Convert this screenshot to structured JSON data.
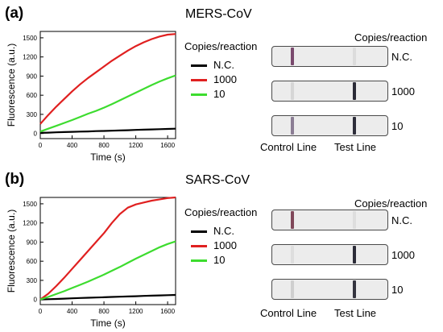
{
  "panels": [
    {
      "label": "(a)",
      "title": "MERS-CoV",
      "legend_title": "Copies/reaction",
      "legend": [
        {
          "name": "N.C.",
          "color": "#000000"
        },
        {
          "name": "1000",
          "color": "#e02020"
        },
        {
          "name": "10",
          "color": "#3ddc2f"
        }
      ],
      "strips_title": "Copies/reaction",
      "strips": [
        {
          "label": "N.C.",
          "control_color": "#7a4a6e",
          "test_color": "#dcdcdc"
        },
        {
          "label": "1000",
          "control_color": "#d6d6d6",
          "test_color": "#2a2a36"
        },
        {
          "label": "10",
          "control_color": "#8b7d94",
          "test_color": "#2e2e3a"
        }
      ],
      "control_line_label": "Control Line",
      "test_line_label": "Test Line"
    },
    {
      "label": "(b)",
      "title": "SARS-CoV",
      "legend_title": "Copies/reaction",
      "legend": [
        {
          "name": "N.C.",
          "color": "#000000"
        },
        {
          "name": "1000",
          "color": "#e02020"
        },
        {
          "name": "10",
          "color": "#3ddc2f"
        }
      ],
      "strips_title": "Copies/reaction",
      "strips": [
        {
          "label": "N.C.",
          "control_color": "#80485a",
          "test_color": "#dedede"
        },
        {
          "label": "1000",
          "control_color": "#dedede",
          "test_color": "#2c2c38"
        },
        {
          "label": "10",
          "control_color": "#cfcfcf",
          "test_color": "#34343f"
        }
      ],
      "control_line_label": "Control Line",
      "test_line_label": "Test Line"
    }
  ],
  "chart_data": [
    {
      "type": "line",
      "title": "",
      "xlabel": "Time (s)",
      "ylabel": "Fluorescence (a.u.)",
      "xlim": [
        0,
        1700
      ],
      "ylim": [
        -80,
        1600
      ],
      "xticks": [
        0,
        400,
        800,
        1200,
        1600
      ],
      "yticks": [
        0,
        300,
        600,
        900,
        1200,
        1500
      ],
      "grid": false,
      "legend_title": "Copies/reaction",
      "x": [
        0,
        100,
        200,
        300,
        400,
        500,
        600,
        700,
        800,
        900,
        1000,
        1100,
        1200,
        1300,
        1400,
        1500,
        1600,
        1700
      ],
      "series": [
        {
          "name": "N.C.",
          "color": "#000000",
          "values": [
            10,
            14,
            18,
            22,
            26,
            30,
            33,
            37,
            40,
            44,
            48,
            52,
            56,
            60,
            64,
            68,
            72,
            76
          ]
        },
        {
          "name": "1000",
          "color": "#e02020",
          "values": [
            150,
            290,
            420,
            540,
            660,
            770,
            870,
            960,
            1050,
            1140,
            1220,
            1300,
            1370,
            1430,
            1480,
            1520,
            1550,
            1560
          ]
        },
        {
          "name": "10",
          "color": "#3ddc2f",
          "values": [
            30,
            75,
            120,
            165,
            210,
            260,
            310,
            355,
            405,
            460,
            520,
            580,
            640,
            700,
            760,
            815,
            865,
            910
          ]
        }
      ]
    },
    {
      "type": "line",
      "title": "",
      "xlabel": "Time (s)",
      "ylabel": "Fluorescence (a.u.)",
      "xlim": [
        0,
        1700
      ],
      "ylim": [
        -80,
        1600
      ],
      "xticks": [
        0,
        400,
        800,
        1200,
        1600
      ],
      "yticks": [
        0,
        300,
        600,
        900,
        1200,
        1500
      ],
      "grid": false,
      "legend_title": "Copies/reaction",
      "x": [
        0,
        100,
        200,
        300,
        400,
        500,
        600,
        700,
        800,
        900,
        1000,
        1100,
        1200,
        1300,
        1400,
        1500,
        1600,
        1700
      ],
      "series": [
        {
          "name": "N.C.",
          "color": "#000000",
          "values": [
            0,
            5,
            9,
            14,
            18,
            23,
            27,
            31,
            35,
            40,
            44,
            48,
            52,
            56,
            60,
            64,
            68,
            72
          ]
        },
        {
          "name": "1000",
          "color": "#e02020",
          "values": [
            0,
            90,
            210,
            340,
            480,
            620,
            760,
            900,
            1040,
            1200,
            1340,
            1440,
            1490,
            1520,
            1550,
            1570,
            1590,
            1600
          ]
        },
        {
          "name": "10",
          "color": "#3ddc2f",
          "values": [
            0,
            40,
            85,
            130,
            180,
            230,
            280,
            335,
            390,
            450,
            510,
            575,
            640,
            700,
            760,
            820,
            870,
            910
          ]
        }
      ]
    }
  ]
}
